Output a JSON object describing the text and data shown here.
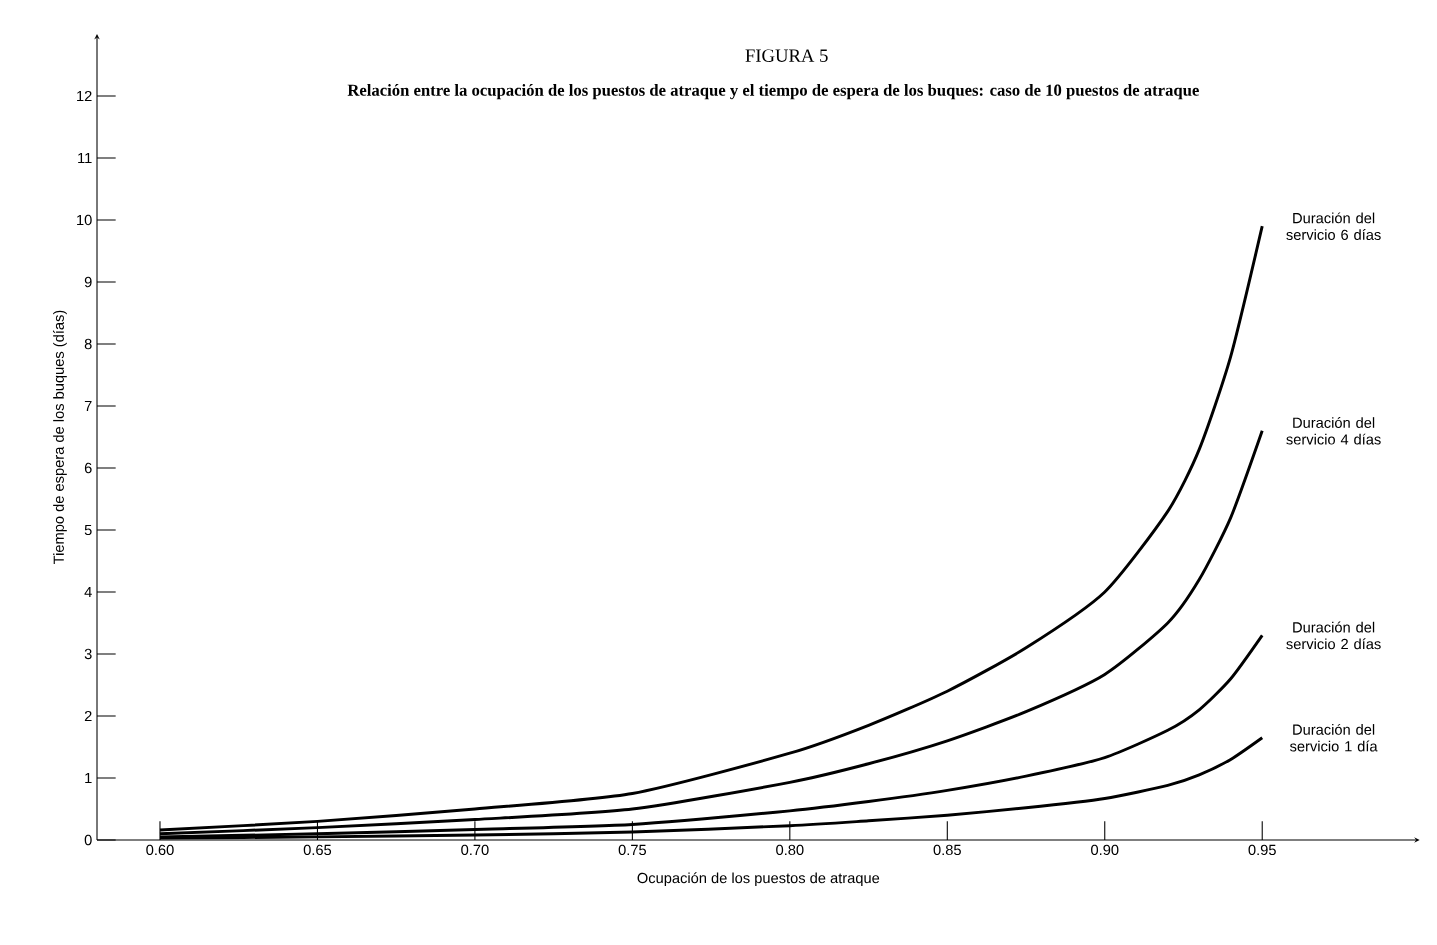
{
  "chart_data": {
    "type": "line",
    "title": "FIGURA 5",
    "subtitle": "Relación entre la ocupación de los puestos de atraque y el tiempo de espera de los buques: caso de 10 puestos de atraque",
    "xlabel": "Ocupación de los puestos de atraque",
    "ylabel": "Tiempo de espera de los buques (días)",
    "x": [
      0.6,
      0.65,
      0.7,
      0.75,
      0.8,
      0.825,
      0.85,
      0.875,
      0.9,
      0.92,
      0.93,
      0.94,
      0.95
    ],
    "series": [
      {
        "name": "Duración del servicio 6 días",
        "color": "#000000",
        "values": [
          0.16,
          0.3,
          0.5,
          0.75,
          1.4,
          1.85,
          2.4,
          3.1,
          4.0,
          5.3,
          6.3,
          7.8,
          9.9
        ]
      },
      {
        "name": "Duración del servicio 4 días",
        "color": "#000000",
        "values": [
          0.1,
          0.2,
          0.33,
          0.5,
          0.93,
          1.23,
          1.6,
          2.07,
          2.67,
          3.5,
          4.2,
          5.2,
          6.6
        ]
      },
      {
        "name": "Duración del servicio 2 días",
        "color": "#000000",
        "values": [
          0.05,
          0.1,
          0.17,
          0.25,
          0.47,
          0.62,
          0.8,
          1.03,
          1.33,
          1.77,
          2.1,
          2.6,
          3.3
        ]
      },
      {
        "name": "Duración del servicio 1 día",
        "color": "#000000",
        "values": [
          0.03,
          0.05,
          0.08,
          0.13,
          0.23,
          0.31,
          0.4,
          0.52,
          0.67,
          0.88,
          1.05,
          1.3,
          1.65
        ]
      }
    ],
    "xlim": [
      0.58,
      1.0
    ],
    "ylim": [
      0,
      13
    ],
    "xticks": [
      {
        "value": 0.6,
        "label": "0.60"
      },
      {
        "value": 0.65,
        "label": "0.65"
      },
      {
        "value": 0.7,
        "label": "0.70"
      },
      {
        "value": 0.75,
        "label": "0.75"
      },
      {
        "value": 0.8,
        "label": "0.80"
      },
      {
        "value": 0.85,
        "label": "0.85"
      },
      {
        "value": 0.9,
        "label": "0.90"
      },
      {
        "value": 0.95,
        "label": "0.95"
      }
    ],
    "yticks": [
      0,
      1,
      2,
      3,
      4,
      5,
      6,
      7,
      8,
      9,
      10,
      11,
      12
    ],
    "grid": false
  }
}
